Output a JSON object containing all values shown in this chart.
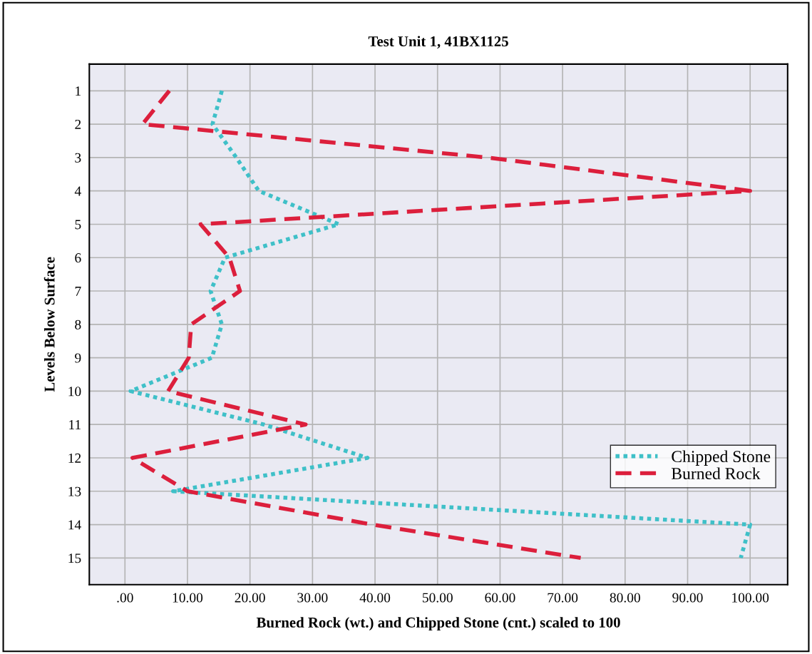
{
  "chart_data": {
    "type": "line",
    "title": "Test Unit 1, 41BX1125",
    "xlabel": "Burned Rock (wt.) and Chipped Stone (cnt.) scaled to 100",
    "ylabel": "Levels Below Surface",
    "orientation": "horizontal",
    "x": [
      1,
      2,
      3,
      4,
      5,
      6,
      7,
      8,
      9,
      10,
      11,
      12,
      13,
      14,
      15
    ],
    "series": [
      {
        "name": "Chipped Stone",
        "color": "#3fc0c8",
        "line_style": "dotted",
        "values": [
          15.5,
          14,
          17.8,
          21.4,
          34.2,
          16,
          13.7,
          15.5,
          13.9,
          0.9,
          22.2,
          38.8,
          7.7,
          100,
          98.5
        ]
      },
      {
        "name": "Burned Rock",
        "color": "#dc1f3c",
        "line_style": "dashed",
        "values": [
          7.1,
          2.8,
          58,
          100,
          12.1,
          16.7,
          18.4,
          10.6,
          10.2,
          6.9,
          28.9,
          1.2,
          10,
          39.6,
          72.9
        ]
      }
    ],
    "xlim": [
      -5.7,
      106
    ],
    "xticks": [
      {
        "value": 0,
        "label": ".00"
      },
      {
        "value": 10,
        "label": "10.00"
      },
      {
        "value": 20,
        "label": "20.00"
      },
      {
        "value": 30,
        "label": "30.00"
      },
      {
        "value": 40,
        "label": "40.00"
      },
      {
        "value": 50,
        "label": "50.00"
      },
      {
        "value": 60,
        "label": "60.00"
      },
      {
        "value": 70,
        "label": "70.00"
      },
      {
        "value": 80,
        "label": "80.00"
      },
      {
        "value": 90,
        "label": "90.00"
      },
      {
        "value": 100,
        "label": "100.00"
      }
    ],
    "ylim": [
      15.8,
      0.2
    ],
    "yticks": [
      1,
      2,
      3,
      4,
      5,
      6,
      7,
      8,
      9,
      10,
      11,
      12,
      13,
      14,
      15
    ],
    "grid": true,
    "legend": "bottom right",
    "marker": "none"
  }
}
